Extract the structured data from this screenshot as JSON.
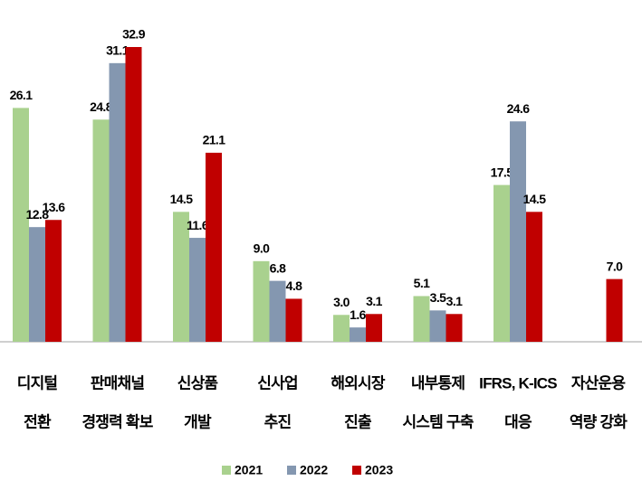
{
  "chart_data": {
    "type": "bar",
    "categories": [
      [
        "디지털",
        "전환"
      ],
      [
        "판매채널",
        "경쟁력 확보"
      ],
      [
        "신상품",
        "개발"
      ],
      [
        "신사업",
        "추진"
      ],
      [
        "해외시장",
        "진출"
      ],
      [
        "내부통제",
        "시스템 구축"
      ],
      [
        "IFRS, K-ICS",
        "대응"
      ],
      [
        "자산운용",
        "역량 강화"
      ]
    ],
    "series": [
      {
        "name": "2021",
        "color": "#a9d18e",
        "values": [
          26.1,
          24.8,
          14.5,
          9.0,
          3.0,
          5.1,
          17.5,
          null
        ],
        "value_labels": [
          "26.1",
          "24.8",
          "14.5",
          "9.0",
          "3.0",
          "5.1",
          "17.5",
          null
        ]
      },
      {
        "name": "2022",
        "color": "#8497b0",
        "values": [
          12.8,
          31.1,
          11.6,
          6.8,
          1.6,
          3.5,
          24.6,
          null
        ],
        "value_labels": [
          "12.8",
          "31.1",
          "11.6",
          "6.8",
          "1.6",
          "3.5",
          "24.6",
          null
        ]
      },
      {
        "name": "2023",
        "color": "#c00000",
        "values": [
          13.6,
          32.9,
          21.1,
          4.8,
          3.1,
          3.1,
          14.5,
          7.0
        ],
        "value_labels": [
          "13.6",
          "32.9",
          "21.1",
          "4.8",
          "3.1",
          "3.1",
          "14.5",
          "7.0"
        ]
      }
    ],
    "legend": "bottom"
  }
}
